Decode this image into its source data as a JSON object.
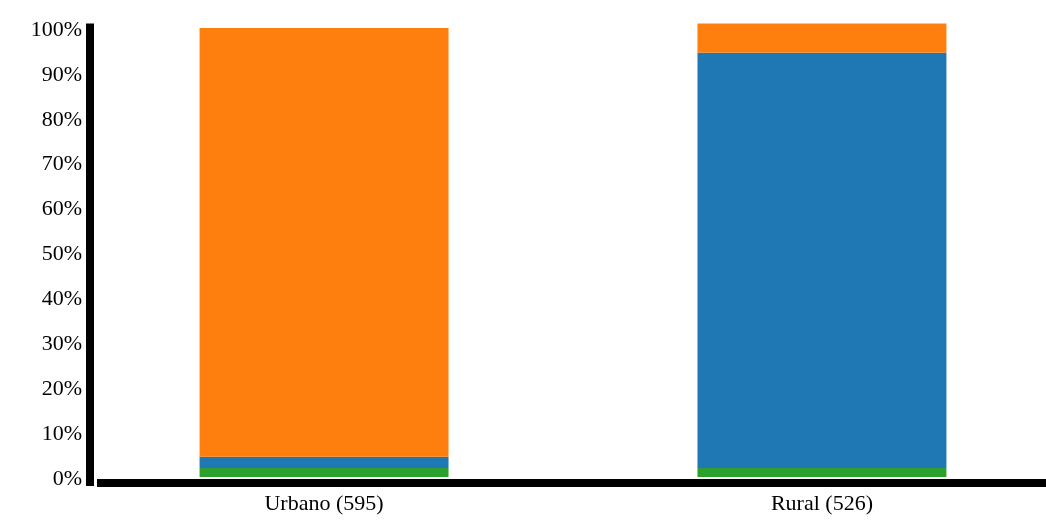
{
  "chart_data": {
    "type": "bar",
    "stacked": true,
    "categories": [
      "Urbano (595)",
      "Rural (526)"
    ],
    "series": [
      {
        "color": "#2ca02c",
        "values": [
          2,
          2
        ]
      },
      {
        "color": "#1f77b4",
        "values": [
          2.5,
          92.5
        ]
      },
      {
        "color": "#ff7f0e",
        "values": [
          95.5,
          6.5
        ]
      }
    ],
    "ylim": [
      0,
      101
    ],
    "yticks": [
      {
        "value": 0,
        "label": "0%"
      },
      {
        "value": 10,
        "label": "10%"
      },
      {
        "value": 20,
        "label": "20%"
      },
      {
        "value": 30,
        "label": "30%"
      },
      {
        "value": 40,
        "label": "40%"
      },
      {
        "value": 50,
        "label": "50%"
      },
      {
        "value": 60,
        "label": "60%"
      },
      {
        "value": 70,
        "label": "70%"
      },
      {
        "value": 80,
        "label": "80%"
      },
      {
        "value": 90,
        "label": "90%"
      },
      {
        "value": 100,
        "label": "100%"
      }
    ],
    "grid": false
  }
}
